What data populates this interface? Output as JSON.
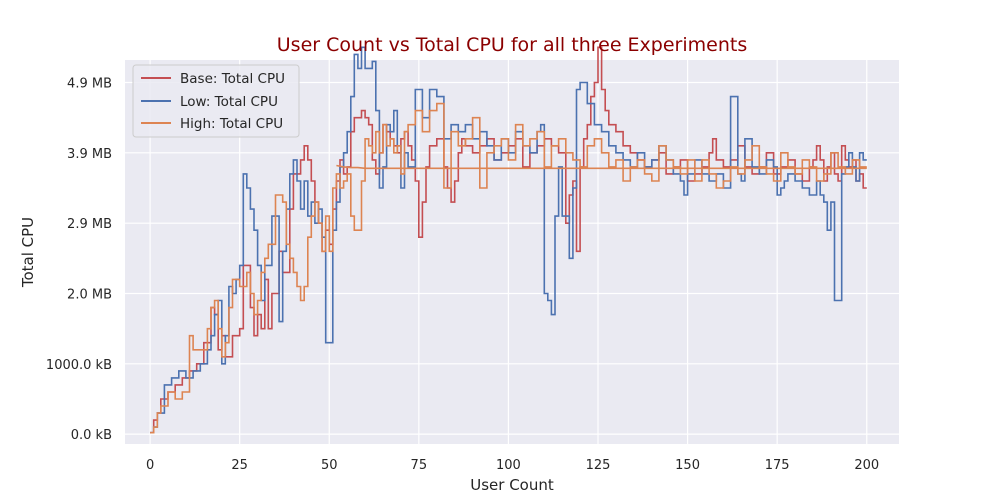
{
  "chart_data": {
    "type": "line",
    "title": "User Count vs Total CPU for all three Experiments",
    "xlabel": "User Count",
    "ylabel": "Total CPU",
    "xlim": [
      -7,
      209
    ],
    "ylim": [
      -0.14,
      5.32
    ],
    "x_ticks": [
      {
        "value": 0,
        "label": "0"
      },
      {
        "value": 25,
        "label": "25"
      },
      {
        "value": 50,
        "label": "50"
      },
      {
        "value": 75,
        "label": "75"
      },
      {
        "value": 100,
        "label": "100"
      },
      {
        "value": 125,
        "label": "125"
      },
      {
        "value": 150,
        "label": "150"
      },
      {
        "value": 175,
        "label": "175"
      },
      {
        "value": 200,
        "label": "200"
      }
    ],
    "y_ticks": [
      {
        "value": 0,
        "label": "0.0 kB"
      },
      {
        "value": 1,
        "label": "1000.0 kB"
      },
      {
        "value": 2,
        "label": "2.0 MB"
      },
      {
        "value": 3,
        "label": "2.9 MB"
      },
      {
        "value": 4,
        "label": "3.9 MB"
      },
      {
        "value": 5,
        "label": "4.9 MB"
      }
    ],
    "grid": true,
    "legend_position": "top-left",
    "series": [
      {
        "name": "Base: Total CPU",
        "color": "#c44e52",
        "step": true,
        "x": [
          0,
          1,
          2,
          3,
          5,
          7,
          9,
          11,
          13,
          15,
          17,
          18,
          19,
          20,
          21,
          23,
          25,
          26,
          28,
          29,
          30,
          31,
          32,
          33,
          34,
          36,
          37,
          39,
          40,
          42,
          43,
          44,
          45,
          46,
          47,
          48,
          49,
          50,
          51,
          52,
          53,
          54,
          55,
          56,
          57,
          58,
          59,
          60,
          61,
          62,
          63,
          64,
          65,
          66,
          67,
          68,
          69,
          70,
          71,
          72,
          73,
          74,
          75,
          76,
          77,
          78,
          80,
          82,
          83,
          84,
          85,
          86,
          87,
          88,
          90,
          92,
          94,
          96,
          98,
          100,
          102,
          104,
          106,
          108,
          110,
          112,
          114,
          116,
          117,
          118,
          119,
          120,
          121,
          122,
          123,
          124,
          125,
          126,
          127,
          128,
          130,
          132,
          134,
          136,
          138,
          140,
          142,
          144,
          146,
          148,
          150,
          152,
          154,
          156,
          157,
          158,
          160,
          162,
          164,
          166,
          168,
          170,
          172,
          174,
          176,
          178,
          180,
          182,
          184,
          185,
          186,
          187,
          188,
          189,
          190,
          191,
          192,
          193,
          194,
          195,
          196,
          197,
          198,
          199,
          200
        ],
        "y": [
          0.02,
          0.2,
          0.3,
          0.5,
          0.6,
          0.7,
          0.8,
          0.9,
          1.0,
          1.3,
          1.8,
          1.7,
          1.2,
          1.4,
          1.1,
          1.4,
          1.5,
          2.4,
          1.8,
          1.4,
          1.7,
          1.5,
          2.2,
          1.5,
          2.0,
          2.6,
          2.3,
          3.2,
          3.7,
          3.9,
          4.1,
          3.9,
          3.6,
          3.3,
          3.0,
          2.6,
          2.9,
          2.7,
          3.2,
          3.6,
          3.9,
          3.7,
          3.8,
          4.3,
          4.5,
          4.5,
          4.6,
          4.5,
          4.4,
          3.9,
          3.7,
          4.0,
          4.4,
          4.3,
          4.2,
          4.1,
          4.0,
          4.2,
          4.3,
          4.1,
          3.9,
          3.6,
          2.8,
          3.3,
          3.8,
          4.1,
          4.2,
          3.8,
          3.5,
          3.3,
          3.6,
          4.0,
          4.2,
          4.1,
          4.0,
          4.1,
          4.2,
          3.9,
          4.0,
          4.1,
          4.2,
          3.8,
          4.0,
          4.1,
          4.2,
          4.1,
          4.0,
          3.0,
          3.4,
          3.6,
          2.6,
          3.8,
          4.2,
          4.4,
          4.8,
          5.0,
          5.5,
          4.9,
          4.6,
          4.4,
          4.3,
          4.1,
          4.0,
          3.9,
          3.8,
          3.9,
          4.0,
          3.7,
          3.8,
          3.9,
          3.6,
          3.7,
          3.8,
          4.0,
          4.2,
          3.9,
          3.8,
          3.9,
          4.1,
          3.8,
          3.7,
          3.8,
          4.0,
          3.7,
          3.8,
          3.9,
          3.7,
          3.6,
          3.8,
          3.9,
          4.1,
          3.9,
          3.6,
          3.8,
          4.0,
          3.7,
          3.6,
          4.1,
          3.9,
          3.8,
          3.9,
          3.6,
          3.7,
          3.5,
          3.5
        ]
      },
      {
        "name": "Low: Total CPU",
        "color": "#4c72b0",
        "step": true,
        "x": [
          0,
          1,
          2,
          4,
          6,
          8,
          10,
          12,
          14,
          16,
          17,
          18,
          19,
          20,
          21,
          22,
          23,
          24,
          25,
          26,
          27,
          28,
          29,
          30,
          31,
          32,
          34,
          36,
          37,
          38,
          39,
          40,
          41,
          42,
          43,
          44,
          45,
          46,
          47,
          48,
          49,
          50,
          51,
          52,
          53,
          54,
          55,
          56,
          57,
          58,
          59,
          60,
          61,
          62,
          63,
          64,
          65,
          66,
          67,
          68,
          69,
          70,
          71,
          72,
          74,
          76,
          78,
          80,
          82,
          84,
          86,
          88,
          90,
          92,
          94,
          96,
          98,
          100,
          102,
          104,
          106,
          108,
          109,
          110,
          111,
          112,
          113,
          114,
          115,
          116,
          117,
          118,
          119,
          120,
          121,
          122,
          124,
          126,
          128,
          130,
          132,
          134,
          136,
          138,
          140,
          142,
          144,
          146,
          148,
          149,
          150,
          152,
          154,
          156,
          158,
          160,
          162,
          164,
          165,
          166,
          168,
          170,
          172,
          174,
          175,
          176,
          177,
          178,
          180,
          182,
          184,
          186,
          187,
          188,
          189,
          190,
          191,
          192,
          193,
          194,
          195,
          196,
          197,
          198,
          199,
          200
        ],
        "y": [
          0.02,
          0.1,
          0.3,
          0.7,
          0.8,
          0.9,
          0.8,
          0.9,
          1.0,
          1.2,
          1.4,
          1.7,
          1.9,
          1.0,
          1.4,
          2.1,
          2.0,
          2.2,
          2.4,
          3.7,
          3.5,
          3.2,
          2.9,
          2.4,
          1.9,
          2.4,
          3.1,
          1.6,
          2.6,
          3.2,
          3.7,
          3.9,
          3.6,
          3.2,
          3.6,
          3.1,
          3.3,
          3.0,
          3.2,
          2.8,
          1.3,
          1.3,
          2.9,
          3.3,
          3.8,
          4.0,
          4.3,
          4.8,
          5.4,
          5.2,
          5.5,
          5.2,
          5.2,
          5.3,
          4.6,
          3.5,
          3.8,
          4.4,
          4.3,
          4.6,
          4.1,
          3.5,
          4.0,
          3.8,
          4.9,
          4.5,
          4.9,
          4.8,
          4.2,
          4.4,
          4.3,
          4.4,
          4.2,
          4.3,
          4.1,
          3.9,
          4.2,
          4.0,
          4.3,
          4.1,
          4.0,
          4.3,
          4.4,
          2.0,
          1.9,
          1.7,
          3.1,
          3.8,
          3.1,
          3.1,
          2.5,
          3.5,
          4.9,
          5.0,
          5.0,
          4.7,
          4.4,
          4.3,
          4.1,
          4.0,
          3.9,
          3.8,
          4.0,
          3.8,
          3.9,
          4.1,
          3.9,
          3.7,
          3.6,
          3.4,
          3.7,
          3.9,
          3.7,
          3.6,
          3.7,
          3.5,
          4.8,
          3.7,
          3.6,
          4.2,
          3.8,
          3.7,
          3.9,
          3.8,
          3.4,
          3.5,
          3.6,
          3.7,
          3.6,
          3.5,
          3.4,
          3.6,
          3.4,
          3.3,
          2.9,
          3.3,
          1.9,
          1.9,
          3.7,
          3.8,
          4.0,
          3.8,
          3.6,
          4.0,
          3.9,
          3.9
        ]
      },
      {
        "name": "High: Total CPU",
        "color": "#dd8452",
        "step": true,
        "x": [
          0,
          1,
          2,
          3,
          5,
          7,
          9,
          11,
          12,
          14,
          16,
          17,
          18,
          19,
          20,
          21,
          22,
          23,
          25,
          27,
          28,
          29,
          30,
          31,
          32,
          33,
          34,
          35,
          37,
          38,
          39,
          40,
          41,
          42,
          43,
          44,
          45,
          46,
          47,
          48,
          49,
          50,
          51,
          52,
          53,
          54,
          55,
          56,
          57,
          58,
          59,
          60,
          61,
          62,
          63,
          64,
          65,
          66,
          67,
          68,
          69,
          70,
          71,
          72,
          74,
          76,
          78,
          80,
          82,
          84,
          86,
          88,
          90,
          92,
          94,
          96,
          98,
          100,
          102,
          104,
          106,
          108,
          110,
          112,
          114,
          116,
          118,
          120,
          122,
          124,
          126,
          128,
          130,
          132,
          134,
          136,
          138,
          140,
          142,
          144,
          146,
          148,
          150,
          152,
          154,
          156,
          158,
          160,
          162,
          164,
          166,
          168,
          170,
          172,
          174,
          176,
          178,
          180,
          182,
          184,
          186,
          188,
          190,
          192,
          194,
          196,
          198,
          200
        ],
        "y": [
          0.02,
          0.1,
          0.3,
          0.4,
          0.6,
          0.5,
          0.6,
          1.4,
          1.2,
          1.2,
          1.5,
          1.8,
          1.9,
          1.5,
          1.1,
          1.3,
          1.8,
          2.2,
          2.1,
          2.3,
          2.0,
          1.7,
          1.9,
          2.3,
          2.5,
          2.7,
          2.7,
          3.4,
          3.3,
          2.7,
          2.5,
          2.3,
          2.1,
          1.9,
          2.1,
          2.8,
          3.1,
          3.3,
          3.0,
          2.6,
          3.1,
          2.6,
          3.5,
          3.7,
          3.5,
          3.6,
          3.7,
          3.1,
          2.9,
          2.9,
          3.6,
          4.2,
          4.1,
          4.0,
          4.3,
          4.0,
          4.4,
          4.1,
          4.2,
          4.0,
          4.1,
          3.7,
          4.3,
          4.4,
          4.6,
          4.3,
          4.6,
          4.7,
          3.5,
          4.3,
          4.1,
          4.2,
          4.5,
          3.5,
          4.0,
          4.1,
          4.2,
          3.9,
          4.4,
          4.1,
          4.2,
          4.3,
          3.8,
          4.1,
          4.2,
          4.0,
          3.9,
          3.8,
          4.1,
          4.2,
          4.0,
          3.8,
          3.9,
          3.6,
          3.8,
          3.9,
          3.7,
          3.6,
          4.1,
          3.9,
          3.8,
          3.7,
          3.9,
          3.6,
          3.9,
          3.7,
          3.5,
          3.6,
          3.8,
          3.7,
          3.9,
          4.1,
          3.8,
          3.7,
          3.6,
          4.0,
          3.8,
          3.7,
          3.9,
          3.8,
          3.6,
          3.7,
          4.0,
          3.8,
          3.7,
          3.9,
          3.8,
          3.8
        ]
      },
      {
        "name": "",
        "color": "#dd8452",
        "step": false,
        "x": [
          52,
          54,
          56,
          58,
          60,
          70,
          80,
          90,
          100,
          110,
          120,
          130,
          140,
          150,
          160,
          170,
          180,
          190,
          200
        ],
        "y": [
          3.82,
          3.8,
          3.79,
          3.79,
          3.78,
          3.78,
          3.78,
          3.78,
          3.78,
          3.78,
          3.78,
          3.78,
          3.78,
          3.78,
          3.78,
          3.78,
          3.78,
          3.78,
          3.78
        ]
      }
    ]
  }
}
